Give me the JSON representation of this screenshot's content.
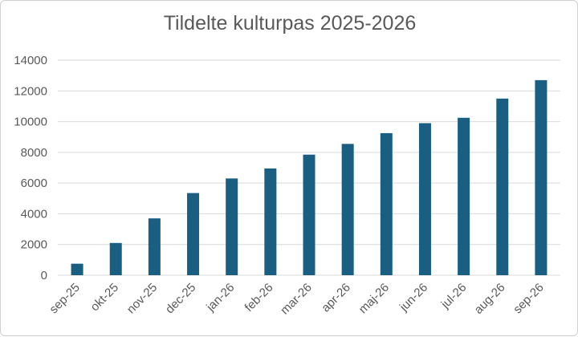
{
  "chart_data": {
    "type": "bar",
    "title": "Tildelte kulturpas 2025-2026",
    "xlabel": "",
    "ylabel": "",
    "categories": [
      "sep-25",
      "okt-25",
      "nov-25",
      "dec-25",
      "jan-26",
      "feb-26",
      "mar-26",
      "apr-26",
      "maj-26",
      "jun-26",
      "jul-26",
      "aug-26",
      "sep-26"
    ],
    "values": [
      750,
      2100,
      3700,
      5350,
      6300,
      6950,
      7850,
      8550,
      9250,
      9900,
      10250,
      11500,
      12700
    ],
    "ylim": [
      0,
      14000
    ],
    "yticks": [
      0,
      2000,
      4000,
      6000,
      8000,
      10000,
      12000,
      14000
    ],
    "grid": true,
    "legend": "none",
    "bar_color": "#1a5f82",
    "grid_color": "#d9d9d9",
    "text_color": "#595959"
  }
}
